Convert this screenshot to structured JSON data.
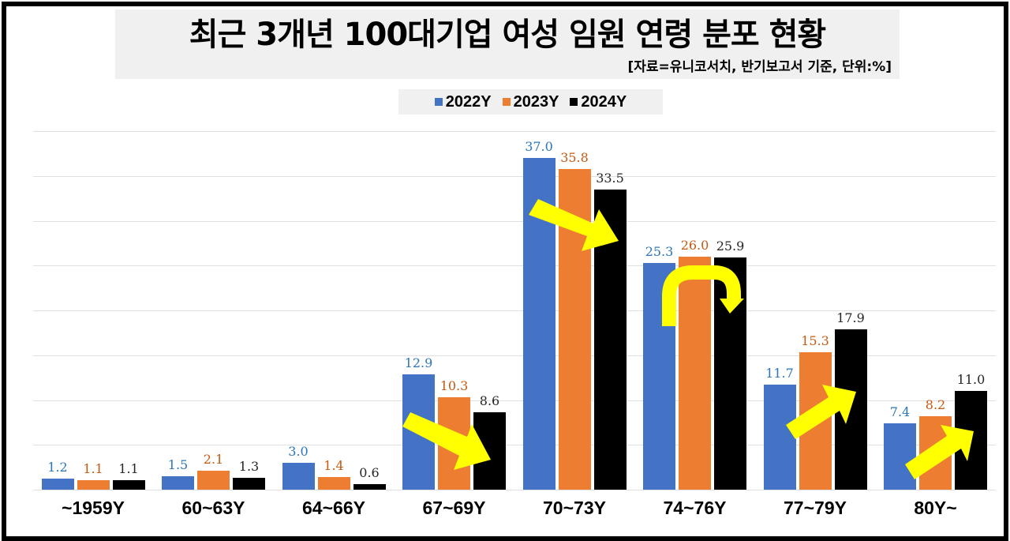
{
  "title": "최근 3개년 100대기업 여성 임원 연령 분포 현황",
  "source": "[자료=유니코서치, 반기보고서 기준, 단위:%]",
  "legend": [
    {
      "label": "2022Y",
      "color": "#4472c4"
    },
    {
      "label": "2023Y",
      "color": "#ed7d31"
    },
    {
      "label": "2024Y",
      "color": "#000000"
    }
  ],
  "label_colors": [
    "#2e75b6",
    "#c55a11",
    "#262626"
  ],
  "annotation_color": "#ffff00",
  "chart_data": {
    "type": "bar",
    "title": "최근 3개년 100대기업 여성 임원 연령 분포 현황",
    "subtitle": "[자료=유니코서치, 반기보고서 기준, 단위:%]",
    "xlabel": "",
    "ylabel": "",
    "ylim": [
      0,
      40
    ],
    "grid": true,
    "gridline_step": 5,
    "legend_position": "top",
    "categories": [
      "~1959Y",
      "60~63Y",
      "64~66Y",
      "67~69Y",
      "70~73Y",
      "74~76Y",
      "77~79Y",
      "80Y~"
    ],
    "series": [
      {
        "name": "2022Y",
        "color": "#4472c4",
        "values": [
          1.2,
          1.5,
          3.0,
          12.9,
          37.0,
          25.3,
          11.7,
          7.4
        ]
      },
      {
        "name": "2023Y",
        "color": "#ed7d31",
        "values": [
          1.1,
          2.1,
          1.4,
          10.3,
          35.8,
          26.0,
          15.3,
          8.2
        ]
      },
      {
        "name": "2024Y",
        "color": "#000000",
        "values": [
          1.1,
          1.3,
          0.6,
          8.6,
          33.5,
          25.9,
          17.9,
          11.0
        ]
      }
    ],
    "data_labels": [
      [
        "1.2",
        "1.5",
        "3.0",
        "12.9",
        "37.0",
        "25.3",
        "11.7",
        "7.4"
      ],
      [
        "1.1",
        "2.1",
        "1.4",
        "10.3",
        "35.8",
        "26.0",
        "15.3",
        "8.2"
      ],
      [
        "1.1",
        "1.3",
        "0.6",
        "8.6",
        "33.5",
        "25.9",
        "17.9",
        "11.0"
      ]
    ],
    "annotations": [
      {
        "category": "67~69Y",
        "type": "arrow",
        "direction": "down-right"
      },
      {
        "category": "70~73Y",
        "type": "arrow",
        "direction": "down-right"
      },
      {
        "category": "74~76Y",
        "type": "u-turn-arrow",
        "direction": "up-then-down"
      },
      {
        "category": "77~79Y",
        "type": "arrow",
        "direction": "up-right"
      },
      {
        "category": "80Y~",
        "type": "arrow",
        "direction": "up-right"
      }
    ]
  }
}
